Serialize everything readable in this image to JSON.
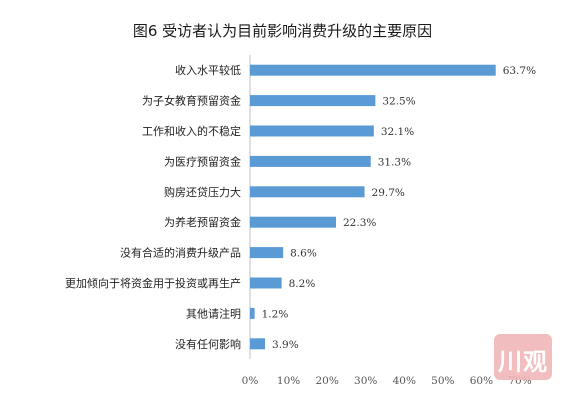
{
  "chart_data": {
    "type": "bar",
    "orientation": "horizontal",
    "title": "图6  受访者认为目前影响消费升级的主要原因",
    "categories": [
      "收入水平较低",
      "为子女教育预留资金",
      "工作和收入的不稳定",
      "为医疗预留资金",
      "购房还贷压力大",
      "为养老预留资金",
      "没有合适的消费升级产品",
      "更加倾向于将资金用于投资或再生产",
      "其他请注明",
      "没有任何影响"
    ],
    "values": [
      63.7,
      32.5,
      32.1,
      31.3,
      29.7,
      22.3,
      8.6,
      8.2,
      1.2,
      3.9
    ],
    "value_labels": [
      "63.7%",
      "32.5%",
      "32.1%",
      "31.3%",
      "29.7%",
      "22.3%",
      "8.6%",
      "8.2%",
      "1.2%",
      "3.9%"
    ],
    "x_ticks": [
      "0%",
      "10%",
      "20%",
      "30%",
      "40%",
      "50%",
      "60%",
      "70%"
    ],
    "xlim": [
      0,
      70
    ],
    "xlabel": "",
    "ylabel": "",
    "grid": false,
    "bar_color": "#5b9bd5"
  },
  "watermark": {
    "text": "川观",
    "color": "#f1b6b8"
  }
}
